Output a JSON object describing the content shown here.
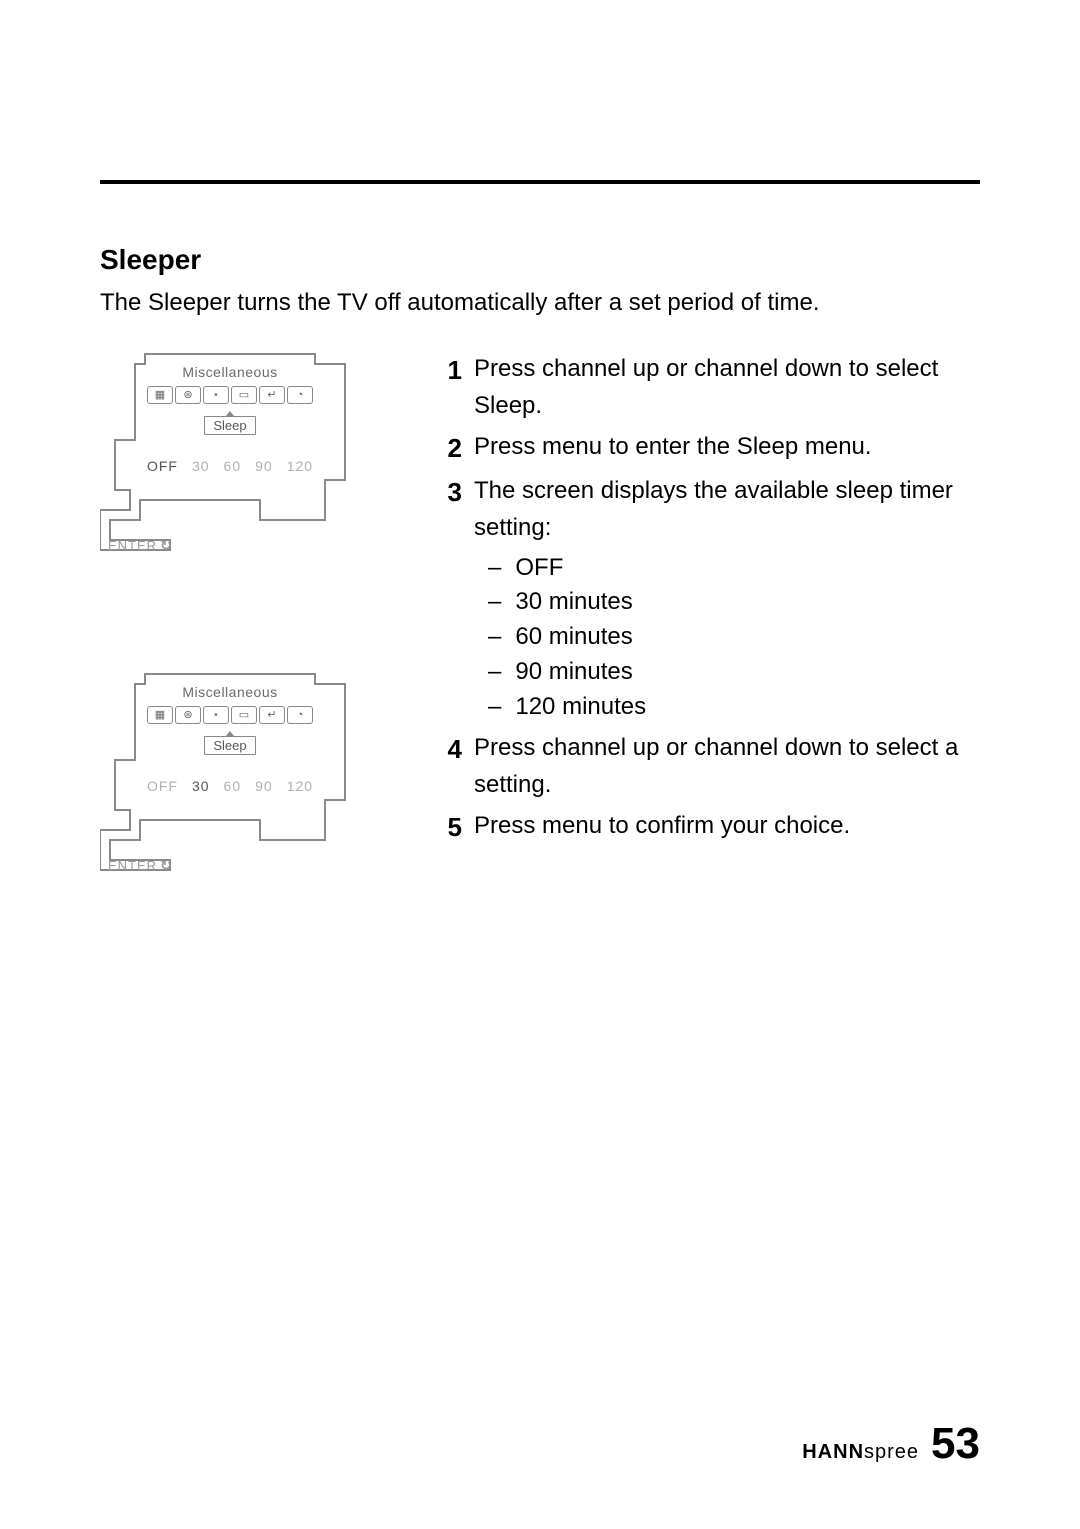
{
  "section": {
    "title": "Sleeper",
    "description": "The Sleeper turns the TV off automatically after a set period of time."
  },
  "osd": {
    "header": "Miscellaneous",
    "sleep_label": "Sleep",
    "enter_label": "ENTER",
    "values": [
      "OFF",
      "30",
      "60",
      "90",
      "120"
    ],
    "panel1_active": "OFF",
    "panel2_active": "30",
    "icon_glyphs": [
      "▦",
      "⊛",
      "⋆",
      "▭",
      "↵",
      "◔"
    ],
    "outline_color": "#8a8a8a",
    "text_color": "#6a6a6a",
    "inactive_color": "#b0b0b0"
  },
  "steps": [
    {
      "n": "1",
      "text": "Press channel up or channel down to select Sleep."
    },
    {
      "n": "2",
      "text": "Press menu to enter the Sleep menu."
    },
    {
      "n": "3",
      "text": "The screen displays the available sleep timer setting:",
      "sub": [
        "OFF",
        "30 minutes",
        "60 minutes",
        "90 minutes",
        "120 minutes"
      ]
    },
    {
      "n": "4",
      "text": "Press channel up or channel down to select a setting."
    },
    {
      "n": "5",
      "text": "Press menu to confirm your choice."
    }
  ],
  "footer": {
    "brand_bold": "HANN",
    "brand_light": "spree",
    "page": "53"
  },
  "colors": {
    "text": "#000000",
    "bg": "#ffffff",
    "rule": "#000000"
  },
  "typography": {
    "title_size_pt": 21,
    "body_size_pt": 18,
    "step_num_weight": "bold"
  }
}
